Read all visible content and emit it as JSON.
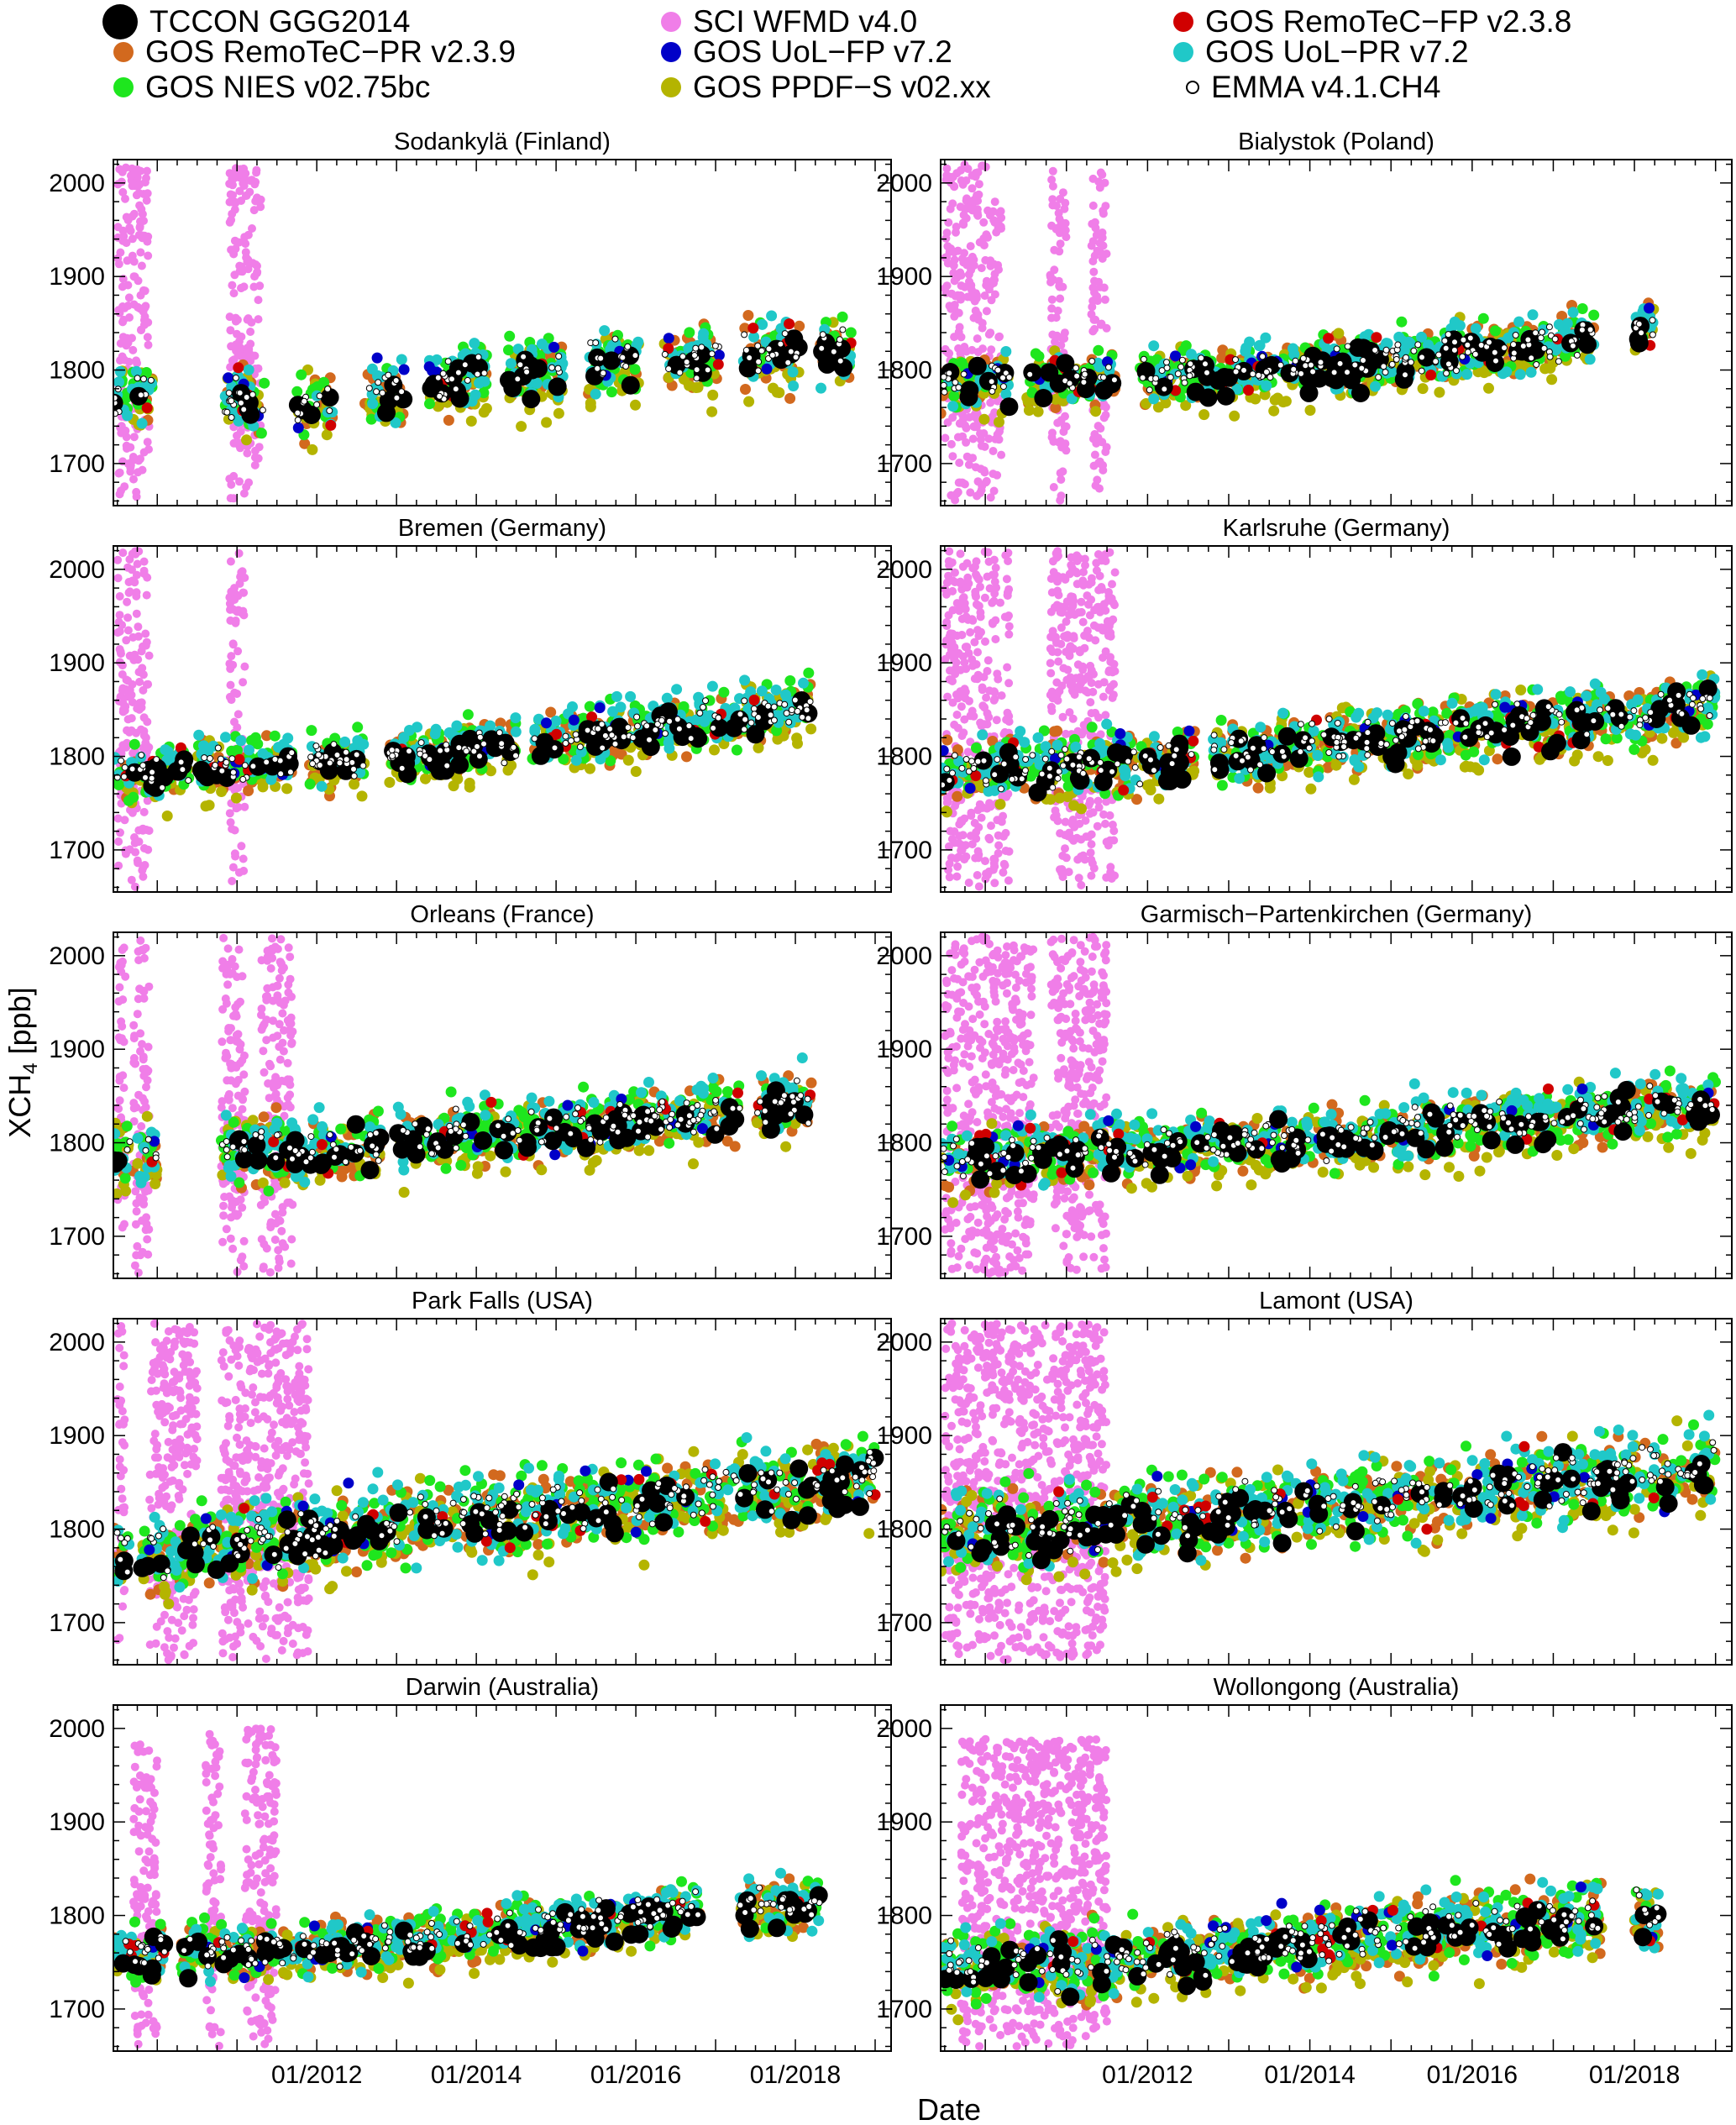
{
  "legend": [
    {
      "label": "TCCON GGG2014",
      "color": "#000000",
      "marker": "big-filled-circle"
    },
    {
      "label": "SCI WFMD v4.0",
      "color": "#f07ee8",
      "marker": "filled-circle"
    },
    {
      "label": "GOS RemoTeC−FP v2.3.8",
      "color": "#d00000",
      "marker": "filled-circle"
    },
    {
      "label": "GOS RemoTeC−PR v2.3.9",
      "color": "#d2691e",
      "marker": "filled-circle"
    },
    {
      "label": "GOS UoL−FP v7.2",
      "color": "#0000c8",
      "marker": "filled-circle"
    },
    {
      "label": "GOS UoL−PR v7.2",
      "color": "#20c8c8",
      "marker": "filled-circle"
    },
    {
      "label": "GOS NIES v02.75bc",
      "color": "#1ee61e",
      "marker": "filled-circle"
    },
    {
      "label": "GOS PPDF−S v02.xx",
      "color": "#b4b400",
      "marker": "filled-circle"
    },
    {
      "label": " EMMA v4.1.CH4",
      "color": "#ffffff",
      "marker": "open-circle"
    }
  ],
  "chart_data": {
    "type": "scatter",
    "xlabel": "Date",
    "ylabel": "XCH4 [ppb]",
    "ylabel_parts": {
      "main": "XCH",
      "sub": "4",
      "rest": " [ppb]"
    },
    "xlim": [
      2009.45,
      2019.2
    ],
    "ylim": [
      1655,
      2025
    ],
    "xtick_labels": [
      "01/2012",
      "01/2014",
      "01/2016",
      "01/2018"
    ],
    "xtick_values": [
      2012,
      2014,
      2016,
      2018
    ],
    "ytick_values": [
      1700,
      1800,
      1900,
      2000
    ],
    "ytick_labels": [
      "1700",
      "1800",
      "1900",
      "2000"
    ],
    "grid": false,
    "legend_position": "top",
    "panels": [
      {
        "title": "Sodankylä (Finland)",
        "trend": [
          [
            2009.5,
            1775
          ],
          [
            2012,
            1765
          ],
          [
            2014,
            1795
          ],
          [
            2016,
            1810
          ],
          [
            2018.6,
            1825
          ]
        ],
        "spread": 28,
        "seasonal": true,
        "sci_periods": [
          [
            2009.5,
            2009.9
          ],
          [
            2010.9,
            2011.3
          ]
        ],
        "sci_range": [
          1660,
          2020
        ],
        "gaps": [
          [
            2009.95,
            2010.85
          ],
          [
            2011.35,
            2011.75
          ],
          [
            2012.2,
            2012.6
          ],
          [
            2013.1,
            2013.4
          ],
          [
            2014.15,
            2014.4
          ],
          [
            2015.1,
            2015.4
          ],
          [
            2016.05,
            2016.35
          ],
          [
            2017.05,
            2017.35
          ],
          [
            2018.05,
            2018.3
          ]
        ],
        "xmax": 2018.7
      },
      {
        "title": "Bialystok (Poland)",
        "trend": [
          [
            2009.5,
            1785
          ],
          [
            2012,
            1795
          ],
          [
            2014,
            1805
          ],
          [
            2016,
            1820
          ],
          [
            2018.2,
            1845
          ]
        ],
        "spread": 24,
        "sci_periods": [
          [
            2009.5,
            2010.2
          ],
          [
            2010.8,
            2011.0
          ],
          [
            2011.3,
            2011.5
          ]
        ],
        "sci_range": [
          1660,
          2020
        ],
        "gaps": [
          [
            2010.3,
            2010.5
          ],
          [
            2011.6,
            2011.9
          ],
          [
            2017.5,
            2018.0
          ]
        ],
        "xmax": 2018.25
      },
      {
        "title": "Bremen (Germany)",
        "trend": [
          [
            2009.5,
            1785
          ],
          [
            2012,
            1795
          ],
          [
            2014,
            1810
          ],
          [
            2016,
            1830
          ],
          [
            2018.2,
            1855
          ]
        ],
        "spread": 22,
        "sci_periods": [
          [
            2009.5,
            2009.9
          ],
          [
            2010.9,
            2011.1
          ]
        ],
        "sci_range": [
          1660,
          2020
        ],
        "gaps": [
          [
            2010.4,
            2010.5
          ],
          [
            2011.7,
            2011.9
          ],
          [
            2012.6,
            2012.9
          ],
          [
            2014.5,
            2014.7
          ]
        ],
        "xmax": 2018.2
      },
      {
        "title": "Karlsruhe (Germany)",
        "trend": [
          [
            2009.5,
            1785
          ],
          [
            2012,
            1795
          ],
          [
            2014,
            1815
          ],
          [
            2016,
            1830
          ],
          [
            2019.0,
            1855
          ]
        ],
        "spread": 26,
        "sci_periods": [
          [
            2009.5,
            2010.3
          ],
          [
            2010.8,
            2011.6
          ]
        ],
        "sci_range": [
          1660,
          2020
        ],
        "gaps": [
          [
            2012.6,
            2012.8
          ]
        ],
        "xmax": 2019.0
      },
      {
        "title": "Orleans (France)",
        "trend": [
          [
            2009.5,
            1790
          ],
          [
            2012,
            1795
          ],
          [
            2014,
            1810
          ],
          [
            2016,
            1825
          ],
          [
            2018.2,
            1845
          ]
        ],
        "spread": 26,
        "sci_periods": [
          [
            2009.5,
            2009.6
          ],
          [
            2009.7,
            2009.9
          ],
          [
            2010.8,
            2011.1
          ],
          [
            2011.3,
            2011.7
          ]
        ],
        "sci_range": [
          1660,
          2020
        ],
        "gaps": [
          [
            2010.0,
            2010.8
          ],
          [
            2012.8,
            2013.0
          ],
          [
            2017.3,
            2017.5
          ]
        ],
        "xmax": 2018.2
      },
      {
        "title": "Garmisch−Partenkirchen (Germany)",
        "trend": [
          [
            2009.5,
            1785
          ],
          [
            2012,
            1795
          ],
          [
            2014,
            1805
          ],
          [
            2016,
            1820
          ],
          [
            2019.0,
            1845
          ]
        ],
        "spread": 26,
        "sci_periods": [
          [
            2009.5,
            2010.6
          ],
          [
            2010.8,
            2011.5
          ]
        ],
        "sci_range": [
          1660,
          2020
        ],
        "gaps": [],
        "xmax": 2019.0
      },
      {
        "title": "Park Falls (USA)",
        "trend": [
          [
            2009.5,
            1775
          ],
          [
            2012,
            1795
          ],
          [
            2014,
            1815
          ],
          [
            2016,
            1830
          ],
          [
            2019.0,
            1860
          ]
        ],
        "spread": 32,
        "sci_periods": [
          [
            2009.5,
            2009.6
          ],
          [
            2009.9,
            2010.5
          ],
          [
            2010.8,
            2011.9
          ]
        ],
        "sci_range": [
          1660,
          2020
        ],
        "gaps": [
          [
            2009.65,
            2009.8
          ]
        ],
        "xmax": 2019.0
      },
      {
        "title": "Lamont (USA)",
        "trend": [
          [
            2009.5,
            1800
          ],
          [
            2012,
            1810
          ],
          [
            2014,
            1825
          ],
          [
            2016,
            1840
          ],
          [
            2019.0,
            1870
          ]
        ],
        "spread": 34,
        "sci_periods": [
          [
            2009.5,
            2011.5
          ]
        ],
        "sci_range": [
          1660,
          2020
        ],
        "gaps": [],
        "xmax": 2019.0
      },
      {
        "title": "Darwin (Australia)",
        "trend": [
          [
            2009.5,
            1760
          ],
          [
            2012,
            1765
          ],
          [
            2014,
            1780
          ],
          [
            2016,
            1800
          ],
          [
            2018.2,
            1815
          ]
        ],
        "spread": 22,
        "sci_periods": [
          [
            2009.7,
            2010.0
          ],
          [
            2010.6,
            2010.8
          ],
          [
            2011.1,
            2011.5
          ]
        ],
        "sci_range": [
          1660,
          2000
        ],
        "gaps": [
          [
            2010.1,
            2010.3
          ],
          [
            2016.8,
            2017.3
          ]
        ],
        "xmax": 2018.3
      },
      {
        "title": "Wollongong (Australia)",
        "trend": [
          [
            2009.5,
            1745
          ],
          [
            2012,
            1755
          ],
          [
            2014,
            1775
          ],
          [
            2016,
            1790
          ],
          [
            2018.3,
            1800
          ]
        ],
        "spread": 30,
        "sci_periods": [
          [
            2009.7,
            2011.5
          ]
        ],
        "sci_range": [
          1660,
          1990
        ],
        "gaps": [
          [
            2017.6,
            2018.0
          ]
        ],
        "xmax": 2018.3
      }
    ]
  }
}
